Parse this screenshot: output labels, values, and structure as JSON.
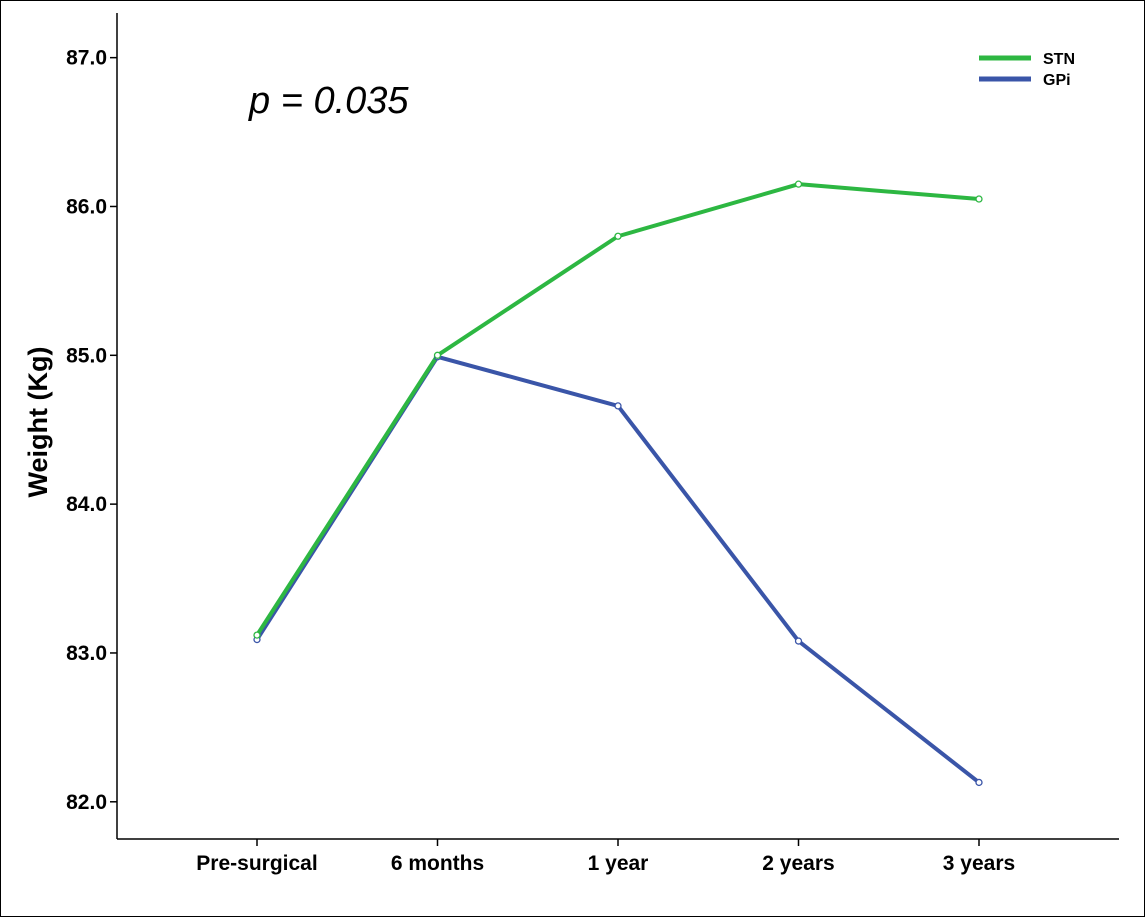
{
  "chart_data": {
    "type": "line",
    "categories": [
      "Pre-surgical",
      "6 months",
      "1 year",
      "2 years",
      "3 years"
    ],
    "ylabel": "Weight (Kg)",
    "xlabel": "",
    "ylim": [
      81.75,
      87.3
    ],
    "yticks": [
      "82.0",
      "83.0",
      "84.0",
      "85.0",
      "86.0",
      "87.0"
    ],
    "ytick_values": [
      82.0,
      83.0,
      84.0,
      85.0,
      86.0,
      87.0
    ],
    "annotation": "p = 0.035",
    "legend_position": "top-right",
    "grid": false,
    "series": [
      {
        "name": "STN",
        "color": "#2db742",
        "values": [
          83.12,
          85.0,
          85.8,
          86.15,
          86.05
        ]
      },
      {
        "name": "GPi",
        "color": "#3a55a8",
        "values": [
          83.09,
          84.99,
          84.66,
          83.08,
          82.13
        ]
      }
    ]
  }
}
